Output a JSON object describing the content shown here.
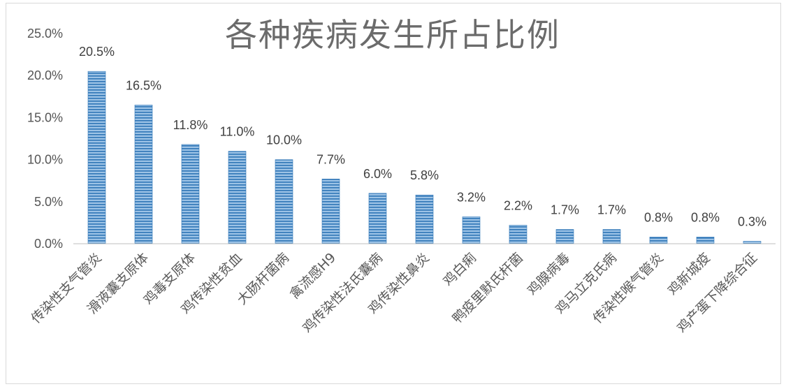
{
  "chart_data": {
    "type": "bar",
    "title": "各种疾病发生所占比例",
    "xlabel": "",
    "ylabel": "",
    "ylim": [
      0,
      25
    ],
    "y_ticks": [
      "0.0%",
      "5.0%",
      "10.0%",
      "15.0%",
      "20.0%",
      "25.0%"
    ],
    "y_tick_values": [
      0,
      5,
      10,
      15,
      20,
      25
    ],
    "categories": [
      "传染性支气管炎",
      "滑液囊支原体",
      "鸡毒支原体",
      "鸡传染性贫血",
      "大肠杆菌病",
      "禽流感H9",
      "鸡传染性法氏囊病",
      "鸡传染性鼻炎",
      "鸡白痢",
      "鸭疫里默氏杆菌",
      "鸡腺病毒",
      "鸡马立克氏病",
      "传染性喉气管炎",
      "鸡新城疫",
      "鸡产蛋下降综合征"
    ],
    "values": [
      20.5,
      16.5,
      11.8,
      11.0,
      10.0,
      7.7,
      6.0,
      5.8,
      3.2,
      2.2,
      1.7,
      1.7,
      0.8,
      0.8,
      0.3
    ],
    "data_labels": [
      "20.5%",
      "16.5%",
      "11.8%",
      "11.0%",
      "10.0%",
      "7.7%",
      "6.0%",
      "5.8%",
      "3.2%",
      "2.2%",
      "1.7%",
      "1.7%",
      "0.8%",
      "0.8%",
      "0.3%"
    ],
    "grid": false,
    "legend": "none",
    "colors": {
      "bar_fill": "#9dc3e6",
      "bar_stripe": "#2e75b6",
      "axis_line": "#bfbfbf",
      "title": "#6b6b6b"
    }
  }
}
